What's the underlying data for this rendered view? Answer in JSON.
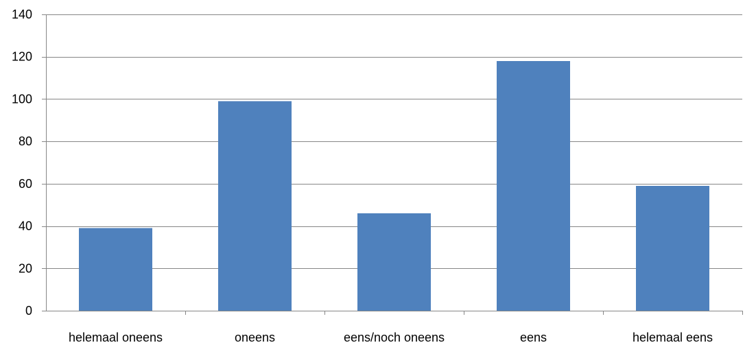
{
  "chart_data": {
    "type": "bar",
    "title": "",
    "xlabel": "",
    "ylabel": "",
    "categories": [
      "helemaal oneens",
      "oneens",
      "eens/noch oneens",
      "eens",
      "helemaal eens"
    ],
    "values": [
      39,
      99,
      46,
      118,
      59
    ],
    "ylim": [
      0,
      140
    ],
    "yticks": [
      0,
      20,
      40,
      60,
      80,
      100,
      120,
      140
    ],
    "grid": "horizontal",
    "legend": "none",
    "bar_color": "#4f81bd"
  }
}
